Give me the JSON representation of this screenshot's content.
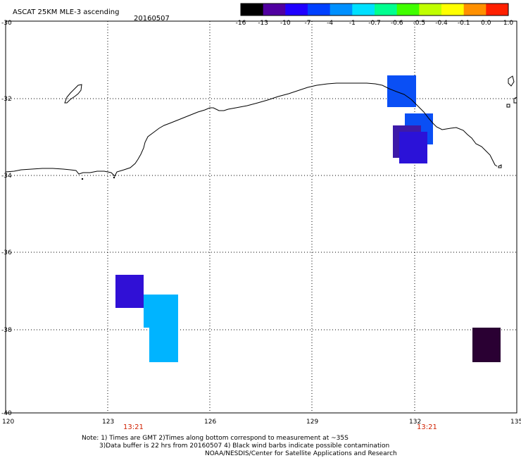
{
  "header": {
    "title": "ASCAT 25KM MLE-3 ascending",
    "date": "20160507"
  },
  "colorbar": {
    "labels": [
      "-16",
      "-13",
      "-10",
      "-7",
      "-4",
      "-1",
      "-0.7",
      "-0.6",
      "-0.5",
      "-0.4",
      "-0.1",
      "0.0",
      "1.0"
    ],
    "colors": [
      "#000000",
      "#5000a0",
      "#2000ff",
      "#0040ff",
      "#0090ff",
      "#00e0ff",
      "#00ff90",
      "#40ff00",
      "#c0ff00",
      "#ffff00",
      "#ff9000",
      "#ff2000"
    ]
  },
  "axes": {
    "x_ticks": [
      "120",
      "123",
      "126",
      "129",
      "132",
      "135"
    ],
    "y_ticks": [
      "-30",
      "-32",
      "-34",
      "-36",
      "-38",
      "-40"
    ]
  },
  "time_labels": [
    "13:21",
    "13:21"
  ],
  "cells": [
    {
      "name": "cell-1",
      "value": -7,
      "color": "#0a4ff5"
    },
    {
      "name": "cell-2",
      "value": -7,
      "color": "#0a4ff5"
    },
    {
      "name": "cell-3",
      "value": -13,
      "color": "#3d1aa8"
    },
    {
      "name": "cell-4",
      "value": -10,
      "color": "#2b12d8"
    },
    {
      "name": "cell-5",
      "value": -10,
      "color": "#3010d6"
    },
    {
      "name": "cell-6",
      "value": -4,
      "color": "#00b4ff"
    },
    {
      "name": "cell-7",
      "value": -4,
      "color": "#00b4ff"
    },
    {
      "name": "cell-8",
      "value": -16,
      "color": "#2a0033"
    }
  ],
  "notes": {
    "line1": "Note: 1) Times are GMT 2)Times along bottom correspond to measurement at ~35S",
    "line2": "3)Data buffer is 22 hrs from 20160507 4) Black wind barbs indicate possible contamination",
    "line3": "NOAA/NESDIS/Center for Satellite Applications and Research"
  }
}
